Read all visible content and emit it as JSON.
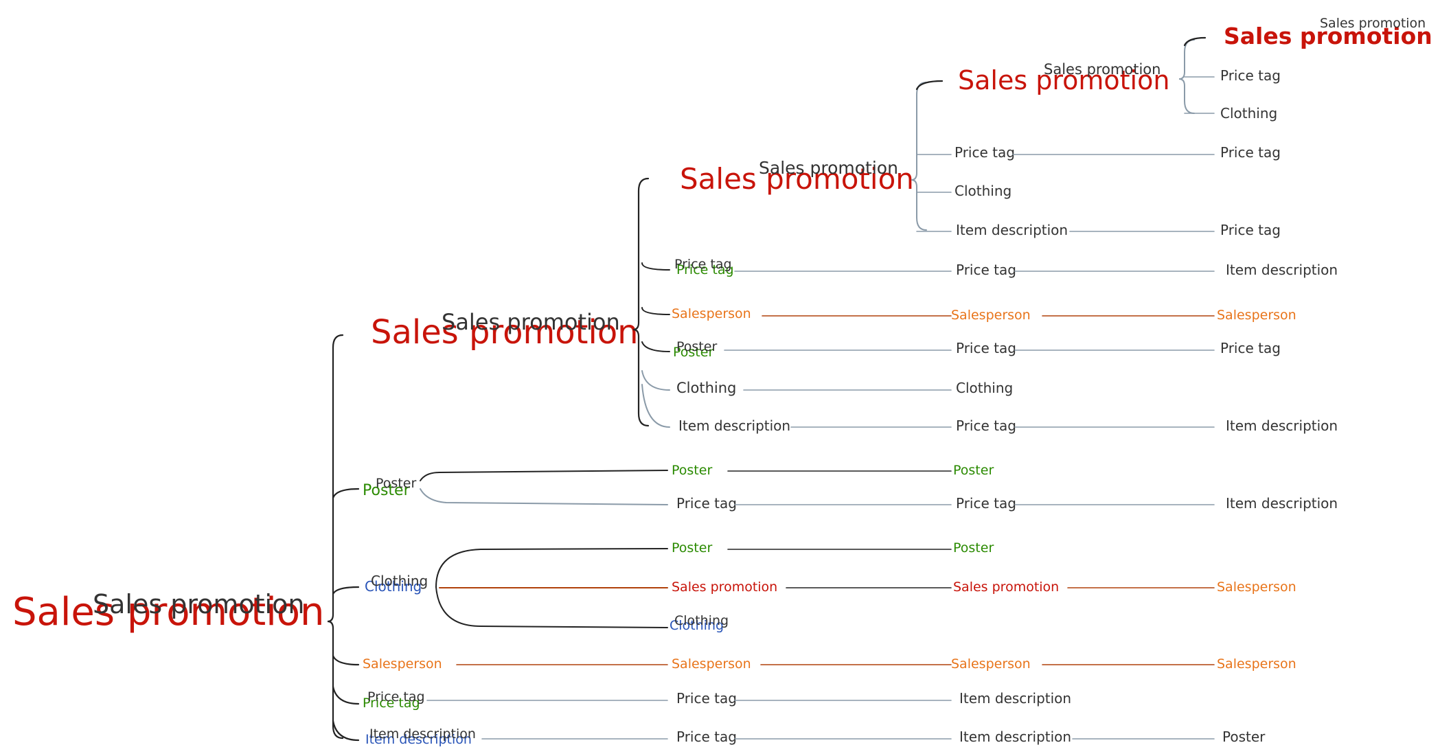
{
  "colors": {
    "red": "#c8140a",
    "dark": "#333333",
    "green": "#2a8a00",
    "blue": "#2a55b8",
    "orange": "#e8741a",
    "line_gray": "#8a9aa8",
    "line_dark": "#222222",
    "line_orange": "#b0400a"
  },
  "root": {
    "label": "Sales promotion",
    "ghost": "Sales promotion"
  },
  "branches": [
    {
      "label": "Sales promotion",
      "ghost": "Sales promotion",
      "color": "red"
    },
    {
      "label": "Sales promotion",
      "ghost": "Sales promotion",
      "color": "red"
    },
    {
      "label": "Sales promotion",
      "ghost": "Sales promotion",
      "color": "red"
    },
    {
      "label": "Sales promotion",
      "ghost": "Sales promotion",
      "color": "red"
    }
  ],
  "rows": [
    {
      "cells": [
        "Price tag",
        "Clothing"
      ]
    },
    {
      "cells": [
        "Price tag",
        "Price tag"
      ]
    },
    {
      "cells": [
        "Clothing"
      ]
    },
    {
      "cells": [
        "Item description",
        "Price tag"
      ]
    },
    {
      "cells": [
        "Price tag",
        "Price tag",
        "Item description"
      ],
      "ghost": "Price tag"
    },
    {
      "cells": [
        "Salesperson",
        "Salesperson",
        "Salesperson"
      ]
    },
    {
      "cells": [
        "Poster",
        "Price tag",
        "Price tag"
      ],
      "ghost": "Poster"
    },
    {
      "cells": [
        "Clothing",
        "Clothing"
      ]
    },
    {
      "cells": [
        "Item description",
        "Price tag",
        "Item description"
      ]
    },
    {
      "cells": [
        "Poster",
        "Poster",
        "Poster"
      ],
      "ghost": "Poster"
    },
    {
      "cells": [
        "Price tag",
        "Price tag",
        "Item description"
      ]
    },
    {
      "cells": [
        "Clothing",
        "Poster",
        "Poster"
      ],
      "ghost": "Clothing"
    },
    {
      "cells": [
        "Sales promotion",
        "Sales promotion",
        "Salesperson"
      ]
    },
    {
      "cells": [
        "Clothing"
      ],
      "ghost": "Clothing"
    },
    {
      "cells": [
        "Salesperson",
        "Salesperson",
        "Salesperson",
        "Salesperson"
      ]
    },
    {
      "cells": [
        "Price tag",
        "Price tag",
        "Item description"
      ],
      "ghost": "Price tag"
    },
    {
      "cells": [
        "Item description",
        "Price tag",
        "Item description",
        "Poster"
      ],
      "ghost": "Item description"
    }
  ]
}
